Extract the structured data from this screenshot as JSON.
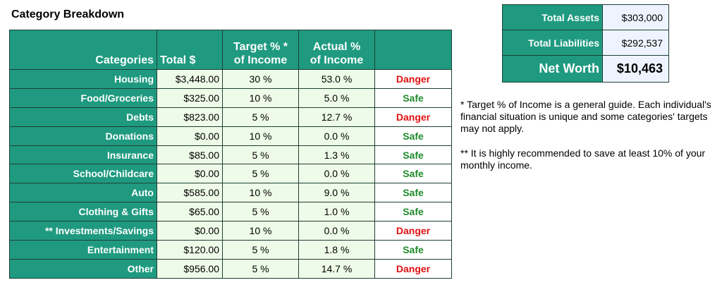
{
  "title": "Category Breakdown",
  "table": {
    "headers": {
      "categories": "Categories",
      "total": "Total $",
      "target_line1": "Target % *",
      "target_line2": "of Income",
      "actual_line1": "Actual %",
      "actual_line2": "of Income",
      "status": ""
    },
    "rows": [
      {
        "name": "Housing",
        "total": "$3,448.00",
        "target": "30 %",
        "actual": "53.0 %",
        "status": "Danger"
      },
      {
        "name": "Food/Groceries",
        "total": "$325.00",
        "target": "10 %",
        "actual": "5.0 %",
        "status": "Safe"
      },
      {
        "name": "Debts",
        "total": "$823.00",
        "target": "5 %",
        "actual": "12.7 %",
        "status": "Danger"
      },
      {
        "name": "Donations",
        "total": "$0.00",
        "target": "10 %",
        "actual": "0.0 %",
        "status": "Safe"
      },
      {
        "name": "Insurance",
        "total": "$85.00",
        "target": "5 %",
        "actual": "1.3 %",
        "status": "Safe"
      },
      {
        "name": "School/Childcare",
        "total": "$0.00",
        "target": "5 %",
        "actual": "0.0 %",
        "status": "Safe"
      },
      {
        "name": "Auto",
        "total": "$585.00",
        "target": "10 %",
        "actual": "9.0 %",
        "status": "Safe"
      },
      {
        "name": "Clothing & Gifts",
        "total": "$65.00",
        "target": "5 %",
        "actual": "1.0 %",
        "status": "Safe"
      },
      {
        "name": "** Investments/Savings",
        "total": "$0.00",
        "target": "10 %",
        "actual": "0.0 %",
        "status": "Danger"
      },
      {
        "name": "Entertainment",
        "total": "$120.00",
        "target": "5 %",
        "actual": "1.8 %",
        "status": "Safe"
      },
      {
        "name": "Other",
        "total": "$956.00",
        "target": "5 %",
        "actual": "14.7 %",
        "status": "Danger"
      }
    ]
  },
  "summary": {
    "total_assets_label": "Total Assets",
    "total_assets_value": "$303,000",
    "total_liabilities_label": "Total Liabilities",
    "total_liabilities_value": "$292,537",
    "net_worth_label": "Net Worth",
    "net_worth_value": "$10,463"
  },
  "notes": {
    "note1": "*  Target % of Income is a general guide. Each individual's financial situation is unique and some categories' targets may not apply.",
    "note2": "**  It is highly recommended to save at least 10% of your monthly income."
  },
  "colors": {
    "header_green": "#1f9a80",
    "cell_light_green": "#eefbe8",
    "safe_green": "#1e8a2a",
    "danger_red": "#e01010",
    "summary_value_bg": "#eef4ff"
  }
}
